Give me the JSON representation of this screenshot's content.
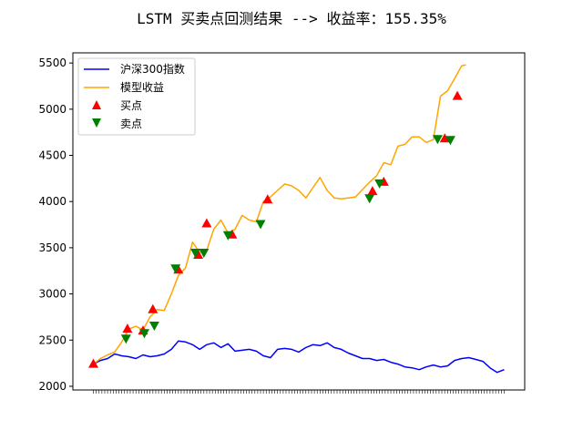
{
  "chart_data": {
    "type": "line",
    "title": "LSTM 买卖点回测结果 --> 收益率：155.35%",
    "xlabel": "",
    "ylabel": "",
    "ylim": [
      1960,
      5610
    ],
    "yticks": [
      2000,
      2500,
      3000,
      3500,
      4000,
      4500,
      5000,
      5500
    ],
    "x_tick_labels_note": "",
    "legend_position": "upper-left",
    "grid": false,
    "series": [
      {
        "name": "沪深300指数",
        "color": "#0000ff",
        "values": [
          [
            0,
            2240
          ],
          [
            5,
            2280
          ],
          [
            10,
            2300
          ],
          [
            15,
            2350
          ],
          [
            20,
            2330
          ],
          [
            25,
            2320
          ],
          [
            30,
            2300
          ],
          [
            35,
            2340
          ],
          [
            40,
            2320
          ],
          [
            45,
            2330
          ],
          [
            50,
            2350
          ],
          [
            55,
            2400
          ],
          [
            60,
            2490
          ],
          [
            65,
            2480
          ],
          [
            70,
            2450
          ],
          [
            75,
            2400
          ],
          [
            80,
            2450
          ],
          [
            85,
            2470
          ],
          [
            90,
            2420
          ],
          [
            95,
            2460
          ],
          [
            100,
            2380
          ],
          [
            105,
            2390
          ],
          [
            110,
            2400
          ],
          [
            115,
            2380
          ],
          [
            120,
            2330
          ],
          [
            125,
            2310
          ],
          [
            130,
            2400
          ],
          [
            135,
            2410
          ],
          [
            140,
            2400
          ],
          [
            145,
            2370
          ],
          [
            150,
            2420
          ],
          [
            155,
            2450
          ],
          [
            160,
            2440
          ],
          [
            165,
            2470
          ],
          [
            170,
            2420
          ],
          [
            175,
            2400
          ],
          [
            180,
            2360
          ],
          [
            185,
            2330
          ],
          [
            190,
            2300
          ],
          [
            195,
            2300
          ],
          [
            200,
            2280
          ],
          [
            205,
            2290
          ],
          [
            210,
            2260
          ],
          [
            215,
            2240
          ],
          [
            220,
            2210
          ],
          [
            225,
            2200
          ],
          [
            230,
            2180
          ],
          [
            235,
            2210
          ],
          [
            240,
            2230
          ],
          [
            245,
            2210
          ],
          [
            250,
            2220
          ],
          [
            255,
            2280
          ],
          [
            260,
            2300
          ],
          [
            265,
            2310
          ],
          [
            270,
            2290
          ],
          [
            275,
            2270
          ],
          [
            280,
            2200
          ],
          [
            285,
            2150
          ],
          [
            290,
            2180
          ]
        ]
      },
      {
        "name": "模型收益",
        "color": "#ffa500",
        "values": [
          [
            0,
            2240
          ],
          [
            5,
            2300
          ],
          [
            10,
            2340
          ],
          [
            15,
            2370
          ],
          [
            20,
            2480
          ],
          [
            25,
            2620
          ],
          [
            30,
            2650
          ],
          [
            35,
            2610
          ],
          [
            40,
            2750
          ],
          [
            45,
            2830
          ],
          [
            50,
            2820
          ],
          [
            55,
            3000
          ],
          [
            60,
            3200
          ],
          [
            65,
            3280
          ],
          [
            70,
            3560
          ],
          [
            75,
            3450
          ],
          [
            80,
            3470
          ],
          [
            85,
            3700
          ],
          [
            90,
            3800
          ],
          [
            95,
            3660
          ],
          [
            100,
            3700
          ],
          [
            105,
            3850
          ],
          [
            110,
            3800
          ],
          [
            115,
            3780
          ],
          [
            120,
            4000
          ],
          [
            125,
            4050
          ],
          [
            130,
            4120
          ],
          [
            135,
            4190
          ],
          [
            140,
            4170
          ],
          [
            145,
            4120
          ],
          [
            150,
            4040
          ],
          [
            155,
            4150
          ],
          [
            160,
            4260
          ],
          [
            165,
            4120
          ],
          [
            170,
            4040
          ],
          [
            175,
            4030
          ],
          [
            180,
            4040
          ],
          [
            185,
            4050
          ],
          [
            190,
            4130
          ],
          [
            195,
            4210
          ],
          [
            200,
            4280
          ],
          [
            205,
            4420
          ],
          [
            210,
            4400
          ],
          [
            215,
            4600
          ],
          [
            220,
            4620
          ],
          [
            225,
            4700
          ],
          [
            230,
            4700
          ],
          [
            235,
            4640
          ],
          [
            240,
            4670
          ],
          [
            245,
            5140
          ],
          [
            250,
            5200
          ],
          [
            255,
            5330
          ],
          [
            260,
            5470
          ],
          [
            263,
            5480
          ]
        ]
      }
    ],
    "markers": [
      {
        "name": "买点",
        "color": "#ff0000",
        "shape": "triangle-up",
        "points": [
          [
            0,
            2240
          ],
          [
            24,
            2620
          ],
          [
            35,
            2600
          ],
          [
            42,
            2830
          ],
          [
            60,
            3260
          ],
          [
            74,
            3420
          ],
          [
            80,
            3760
          ],
          [
            98,
            3640
          ],
          [
            123,
            4020
          ],
          [
            197,
            4110
          ],
          [
            205,
            4210
          ],
          [
            248,
            4680
          ],
          [
            257,
            5140
          ]
        ]
      },
      {
        "name": "卖点",
        "color": "#008000",
        "shape": "triangle-down",
        "points": [
          [
            23,
            2520
          ],
          [
            36,
            2580
          ],
          [
            43,
            2660
          ],
          [
            58,
            3280
          ],
          [
            72,
            3450
          ],
          [
            78,
            3450
          ],
          [
            95,
            3640
          ],
          [
            118,
            3760
          ],
          [
            195,
            4040
          ],
          [
            202,
            4200
          ],
          [
            243,
            4680
          ],
          [
            252,
            4670
          ]
        ]
      }
    ]
  }
}
